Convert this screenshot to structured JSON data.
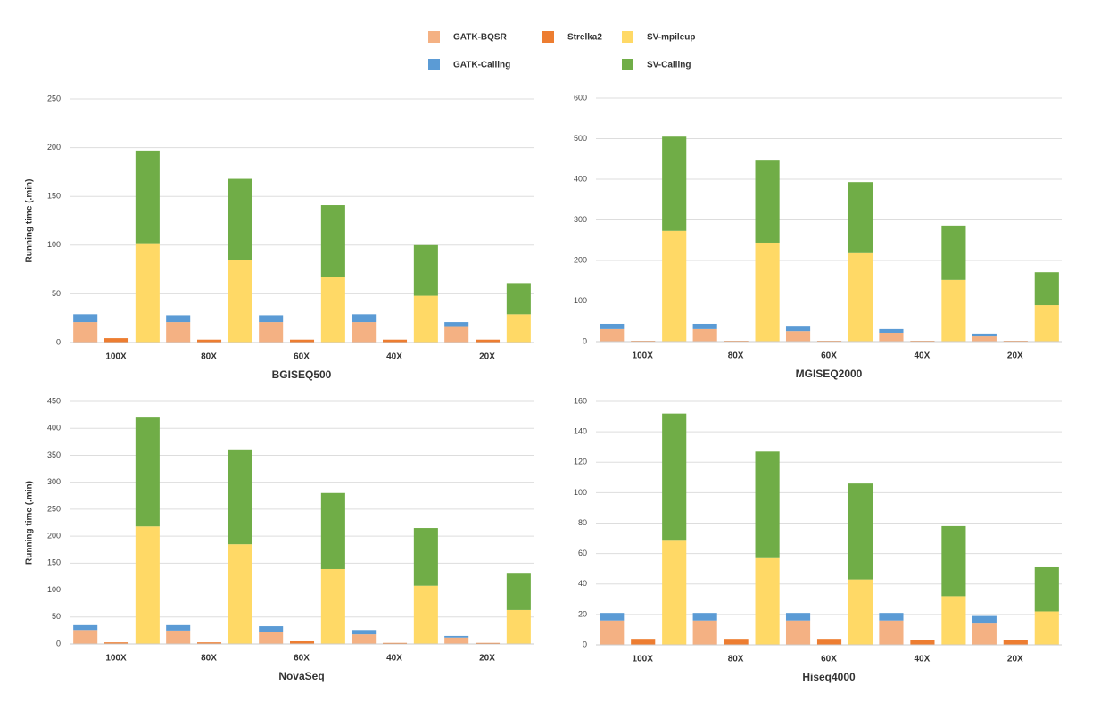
{
  "legend": [
    {
      "name": "GATK-BQSR",
      "color": "#f4b183"
    },
    {
      "name": "GATK-Calling",
      "color": "#5b9bd5"
    },
    {
      "name": "Strelka2",
      "color": "#ed7d31"
    },
    {
      "name": "SV-mpileup",
      "color": "#ffd966"
    },
    {
      "name": "SV-Calling",
      "color": "#70ad47"
    }
  ],
  "chart_data": [
    {
      "type": "bar",
      "title": "BGISEQ500",
      "ylabel": "Running time (.min)",
      "categories": [
        "100X",
        "80X",
        "60X",
        "40X",
        "20X"
      ],
      "ylim": [
        0,
        250
      ],
      "yticks": [
        0,
        50,
        100,
        150,
        200,
        250
      ],
      "grid": true,
      "series": [
        {
          "values": [
            21,
            21,
            21,
            21,
            16
          ]
        },
        {
          "values": [
            8,
            7,
            7,
            8,
            5
          ]
        },
        {
          "values": [
            4.5,
            3,
            3,
            3,
            3
          ]
        },
        {
          "values": [
            102,
            85,
            67,
            48,
            29
          ]
        },
        {
          "values": [
            95,
            83,
            74,
            52,
            32
          ]
        }
      ]
    },
    {
      "type": "bar",
      "title": "MGISEQ2000",
      "categories": [
        "100X",
        "80X",
        "60X",
        "40X",
        "20X"
      ],
      "ylim": [
        0,
        600
      ],
      "yticks": [
        0,
        100,
        200,
        300,
        400,
        500,
        600
      ],
      "grid": true,
      "series": [
        {
          "values": [
            31,
            31,
            26,
            22,
            13
          ]
        },
        {
          "values": [
            13,
            13,
            11,
            9,
            7
          ]
        },
        {
          "values": [
            2,
            2,
            2,
            2,
            2
          ]
        },
        {
          "values": [
            273,
            244,
            218,
            152,
            90
          ]
        },
        {
          "values": [
            232,
            204,
            175,
            134,
            81
          ]
        }
      ]
    },
    {
      "type": "bar",
      "title": "NovaSeq",
      "ylabel": "Running time (.min)",
      "categories": [
        "100X",
        "80X",
        "60X",
        "40X",
        "20X"
      ],
      "ylim": [
        0,
        450
      ],
      "yticks": [
        0,
        50,
        100,
        150,
        200,
        250,
        300,
        350,
        400,
        450
      ],
      "grid": true,
      "series": [
        {
          "values": [
            26,
            25,
            23,
            18,
            12
          ]
        },
        {
          "values": [
            9,
            10,
            10,
            8,
            3
          ]
        },
        {
          "values": [
            3,
            3,
            5,
            2,
            2
          ]
        },
        {
          "values": [
            218,
            185,
            139,
            108,
            63
          ]
        },
        {
          "values": [
            202,
            176,
            141,
            107,
            69
          ]
        }
      ]
    },
    {
      "type": "bar",
      "title": "Hiseq4000",
      "categories": [
        "100X",
        "80X",
        "60X",
        "40X",
        "20X"
      ],
      "ylim": [
        0,
        160
      ],
      "yticks": [
        0,
        20,
        40,
        60,
        80,
        100,
        120,
        140,
        160
      ],
      "grid": true,
      "series": [
        {
          "values": [
            16,
            16,
            16,
            16,
            14
          ]
        },
        {
          "values": [
            5,
            5,
            5,
            5,
            5
          ]
        },
        {
          "values": [
            4,
            4,
            4,
            3,
            3
          ]
        },
        {
          "values": [
            69,
            57,
            43,
            32,
            22
          ]
        },
        {
          "values": [
            83,
            70,
            63,
            46,
            29
          ]
        }
      ]
    }
  ]
}
